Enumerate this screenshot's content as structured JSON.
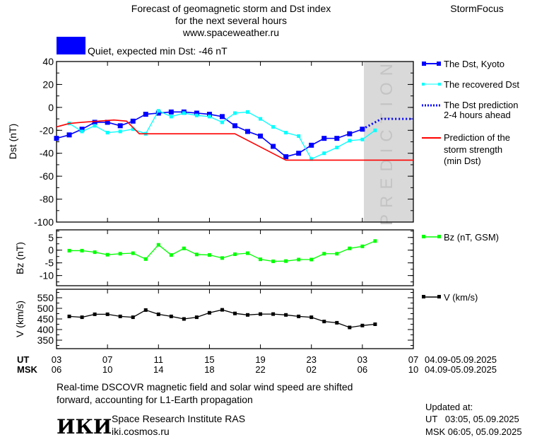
{
  "header": {
    "title_line1": "Forecast of geomagnetic storm and Dst index",
    "title_line2": "for the next several hours",
    "website": "www.spaceweather.ru",
    "brand": "StormFocus",
    "status_text": "Quiet, expected min Dst: -46 nT",
    "status_color": "#0000ff"
  },
  "legend": {
    "dst_kyoto": "The Dst, Kyoto",
    "dst_recovered": "The recovered Dst",
    "dst_prediction_1": "The Dst prediction",
    "dst_prediction_2": "2-4 hours ahead",
    "storm_1": "Prediction of the",
    "storm_2": "storm strength",
    "storm_3": "(min Dst)",
    "bz": "Bz (nT, GSM)",
    "v": "V (km/s)"
  },
  "time_axis": {
    "ut_label": "UT",
    "msk_label": "MSK",
    "ut_ticks": [
      "03",
      "07",
      "11",
      "15",
      "19",
      "23",
      "03",
      "07"
    ],
    "msk_ticks": [
      "06",
      "10",
      "14",
      "18",
      "22",
      "02",
      "06",
      "10"
    ],
    "date_range_ut": "04.09-05.09.2025",
    "date_range_msk": "04.09-05.09.2025"
  },
  "footer": {
    "note_line1": "Real-time DSCOVR magnetic field and solar wind speed are shifted",
    "note_line2": "forward, accounting for L1-Earth propagation",
    "institute": "Space Research Institute RAS",
    "institute_url": "iki.cosmos.ru",
    "logo_text": "ИКИ",
    "updated_label": "Updated at:",
    "updated_ut": "UT   03:05, 05.09.2025",
    "updated_msk": "MSK 06:05, 05.09.2025"
  },
  "prediction_label": "PREDICTION",
  "chart_data": [
    {
      "type": "line",
      "ylabel": "Dst (nT)",
      "ylim": [
        -100,
        40
      ],
      "yticks": [
        40,
        20,
        0,
        -20,
        -40,
        -60,
        -80,
        -100
      ],
      "x_unit": "hours UT from 03:00 04.09",
      "xlim": [
        3,
        31
      ],
      "prediction_region": [
        27,
        31
      ],
      "series": [
        {
          "name": "The Dst, Kyoto",
          "color": "#0000ff",
          "x": [
            3,
            4,
            5,
            6,
            7,
            8,
            9,
            10,
            11,
            12,
            13,
            14,
            15,
            16,
            17,
            18,
            19,
            20,
            21,
            22,
            23,
            24,
            25,
            26,
            27
          ],
          "values": [
            -27,
            -24,
            -19,
            -13,
            -13,
            -16,
            -12,
            -6,
            -5,
            -4,
            -4,
            -5,
            -6,
            -8,
            -16,
            -21,
            -25,
            -34,
            -43,
            -40,
            -33,
            -27,
            -27,
            -23,
            -19
          ]
        },
        {
          "name": "The recovered Dst",
          "color": "#00ffff",
          "x": [
            4,
            5,
            6,
            7,
            8,
            9,
            10,
            11,
            12,
            13,
            14,
            15,
            16,
            17,
            18,
            19,
            20,
            21,
            22,
            23,
            24,
            25,
            26,
            27,
            28
          ],
          "values": [
            -14,
            -21,
            -16,
            -22,
            -21,
            -19,
            -23,
            -3,
            -8,
            -5,
            -7,
            -8,
            -13,
            -5,
            -4,
            -10,
            -17,
            -22,
            -25,
            -45,
            -40,
            -35,
            -29,
            -28,
            -20
          ]
        },
        {
          "name": "The Dst prediction 2-4 hours ahead",
          "color": "#0000ff",
          "x": [
            27,
            28.5,
            31
          ],
          "values": [
            -19,
            -10,
            -10
          ]
        },
        {
          "name": "Prediction of the storm strength (min Dst)",
          "color": "#ff0000",
          "x": [
            3,
            4,
            5,
            7.5,
            8.5,
            9.5,
            17,
            21,
            31
          ],
          "values": [
            -17,
            -14,
            -13,
            -11,
            -12,
            -23,
            -23,
            -46,
            -46
          ]
        }
      ]
    },
    {
      "type": "line",
      "ylabel": "Bz (nT)",
      "ylim": [
        -14,
        8
      ],
      "yticks": [
        5,
        0,
        -5,
        -10
      ],
      "series": [
        {
          "name": "Bz (nT, GSM)",
          "color": "#00ff00",
          "x": [
            4,
            5,
            6,
            7,
            8,
            9,
            10,
            11,
            12,
            13,
            14,
            15,
            16,
            17,
            18,
            19,
            20,
            21,
            22,
            23,
            24,
            25,
            26,
            27,
            28
          ],
          "values": [
            -0.2,
            -0.2,
            -0.8,
            -1.8,
            -1.4,
            -1.2,
            -3.5,
            2.1,
            -1.9,
            0.7,
            -1.7,
            -1.9,
            -3.1,
            -1.6,
            -1.2,
            -3.6,
            -4.4,
            -4.3,
            -3.7,
            -3.7,
            -1.4,
            -1.4,
            0.7,
            1.5,
            3.6
          ]
        }
      ]
    },
    {
      "type": "line",
      "ylabel": "V (km/s)",
      "ylim": [
        310,
        590
      ],
      "yticks": [
        550,
        500,
        450,
        400,
        350
      ],
      "series": [
        {
          "name": "V (km/s)",
          "color": "#000000",
          "x": [
            4,
            5,
            6,
            7,
            8,
            9,
            10,
            11,
            12,
            13,
            14,
            15,
            16,
            17,
            18,
            19,
            20,
            21,
            22,
            23,
            24,
            25,
            26,
            27,
            28
          ],
          "values": [
            462,
            458,
            472,
            472,
            462,
            458,
            492,
            472,
            462,
            450,
            458,
            479,
            493,
            476,
            469,
            473,
            473,
            469,
            462,
            458,
            438,
            432,
            410,
            419,
            425
          ]
        }
      ]
    }
  ]
}
